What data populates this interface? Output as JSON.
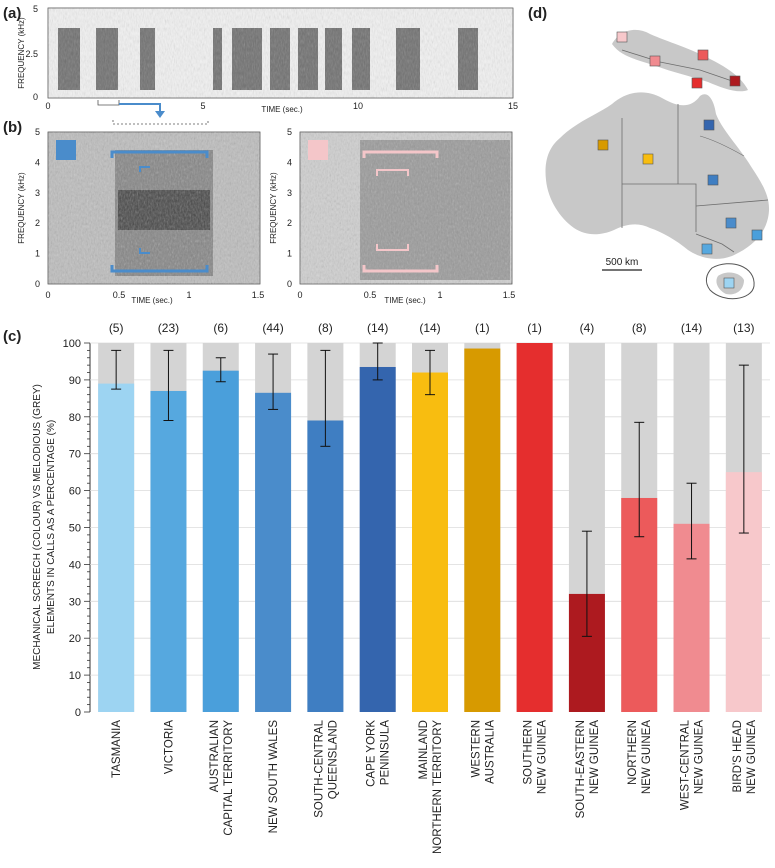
{
  "panels": {
    "a": "(a)",
    "b": "(b)",
    "c": "(c)",
    "d": "(d)"
  },
  "spectrogram_top": {
    "ylabel": "FREQUENCY (kHz)",
    "xlabel": "TIME (sec.)",
    "yticks": [
      "0",
      "2.5",
      "5"
    ],
    "xticks": [
      "0",
      "5",
      "10",
      "15"
    ]
  },
  "spectrogram_left": {
    "ylabel": "FREQUENCY (kHz)",
    "xlabel": "TIME (sec.)",
    "yticks": [
      "0",
      "1",
      "2",
      "3",
      "4",
      "5"
    ],
    "xticks": [
      "0",
      "0.5",
      "1",
      "1.5"
    ],
    "swatch_color": "#4a8ccb"
  },
  "spectrogram_right": {
    "ylabel": "FREQUENCY (kHz)",
    "xlabel": "TIME (sec.)",
    "yticks": [
      "0",
      "1",
      "2",
      "3",
      "4",
      "5"
    ],
    "xticks": [
      "0",
      "0.5",
      "1",
      "1.5"
    ],
    "swatch_color": "#f4c6c9"
  },
  "map": {
    "scale_label": "500 km"
  },
  "chart_data": {
    "type": "bar",
    "ylabel": "MECHANICAL SCREECH (COLOUR) VS MELODIOUS (GREY) ELEMENTS IN CALLS AS A PERCENTAGE (%)",
    "ylim": [
      0,
      100
    ],
    "yticks": [
      0,
      10,
      20,
      30,
      40,
      50,
      60,
      70,
      80,
      90,
      100
    ],
    "background_color": "#d4d4d4",
    "categories": [
      [
        "TASMANIA"
      ],
      [
        "VICTORIA"
      ],
      [
        "AUSTRALIAN",
        "CAPITAL TERRITORY"
      ],
      [
        "NEW SOUTH WALES"
      ],
      [
        "SOUTH-CENTRAL",
        "QUEENSLAND"
      ],
      [
        "CAPE YORK",
        "PENINSULA"
      ],
      [
        "MAINLAND",
        "NORTHERN TERRITORY"
      ],
      [
        "WESTERN",
        "AUSTRALIA"
      ],
      [
        "SOUTHERN",
        "NEW GUINEA"
      ],
      [
        "SOUTH-EASTERN",
        "NEW GUINEA"
      ],
      [
        "NORTHERN",
        "NEW GUINEA"
      ],
      [
        "WEST-CENTRAL",
        "NEW GUINEA"
      ],
      [
        "BIRD'S HEAD",
        "NEW GUINEA"
      ]
    ],
    "counts": [
      "(5)",
      "(23)",
      "(6)",
      "(44)",
      "(8)",
      "(14)",
      "(14)",
      "(1)",
      "(1)",
      "(4)",
      "(8)",
      "(14)",
      "(13)"
    ],
    "values": [
      89,
      87,
      92.5,
      86.5,
      79,
      93.5,
      92,
      98.5,
      100,
      32,
      58,
      51,
      65
    ],
    "err_low": [
      87.5,
      79,
      89.5,
      82,
      72,
      90,
      86,
      null,
      null,
      20.5,
      47.5,
      41.5,
      48.5
    ],
    "err_high": [
      98,
      98,
      96,
      97,
      98,
      100,
      98,
      null,
      null,
      49,
      78.5,
      62,
      94
    ],
    "colors": [
      "#9dd4f2",
      "#56a8df",
      "#4a9fdb",
      "#4a8ccb",
      "#3f7ec2",
      "#3465ae",
      "#f8bd10",
      "#d79a00",
      "#e52e2e",
      "#ad1a1f",
      "#ec5a5b",
      "#f08b90",
      "#f7c8cb"
    ]
  }
}
